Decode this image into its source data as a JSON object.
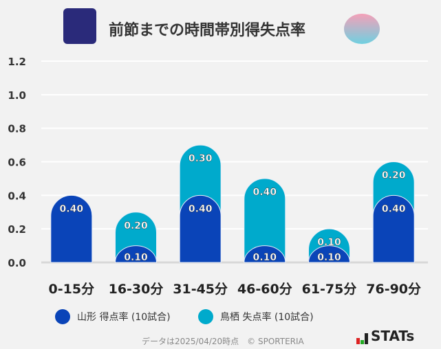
{
  "title": "前節までの時間帯別得失点率",
  "logos": {
    "left": "Montedio YAMAGATA",
    "right": "Sagantosu"
  },
  "chart_data": {
    "type": "bar",
    "stacked": "overlapping",
    "categories": [
      "0-15分",
      "16-30分",
      "31-45分",
      "46-60分",
      "61-75分",
      "76-90分"
    ],
    "series": [
      {
        "name": "山形 得点率 (10試合)",
        "color": "#0a44b8",
        "values": [
          0.4,
          0.1,
          0.4,
          0.1,
          0.1,
          0.4
        ],
        "labels": [
          "0.40",
          "0.10",
          "0.40",
          "0.10",
          "0.10",
          "0.40"
        ]
      },
      {
        "name": "鳥栖 失点率 (10試合)",
        "color": "#00aacc",
        "values": [
          0,
          0.2,
          0.3,
          0.4,
          0.1,
          0.2
        ],
        "labels": [
          "",
          "0.20",
          "0.30",
          "0.40",
          "0.10",
          "0.20"
        ]
      }
    ],
    "yticks": [
      "0.0",
      "0.2",
      "0.4",
      "0.6",
      "0.8",
      "1.0",
      "1.2"
    ],
    "ylim": [
      0,
      1.2
    ],
    "grid": true,
    "legend": "bottom"
  },
  "footer": {
    "note": "データは2025/04/20時点　© SPORTERIA",
    "brand": "STATs"
  }
}
